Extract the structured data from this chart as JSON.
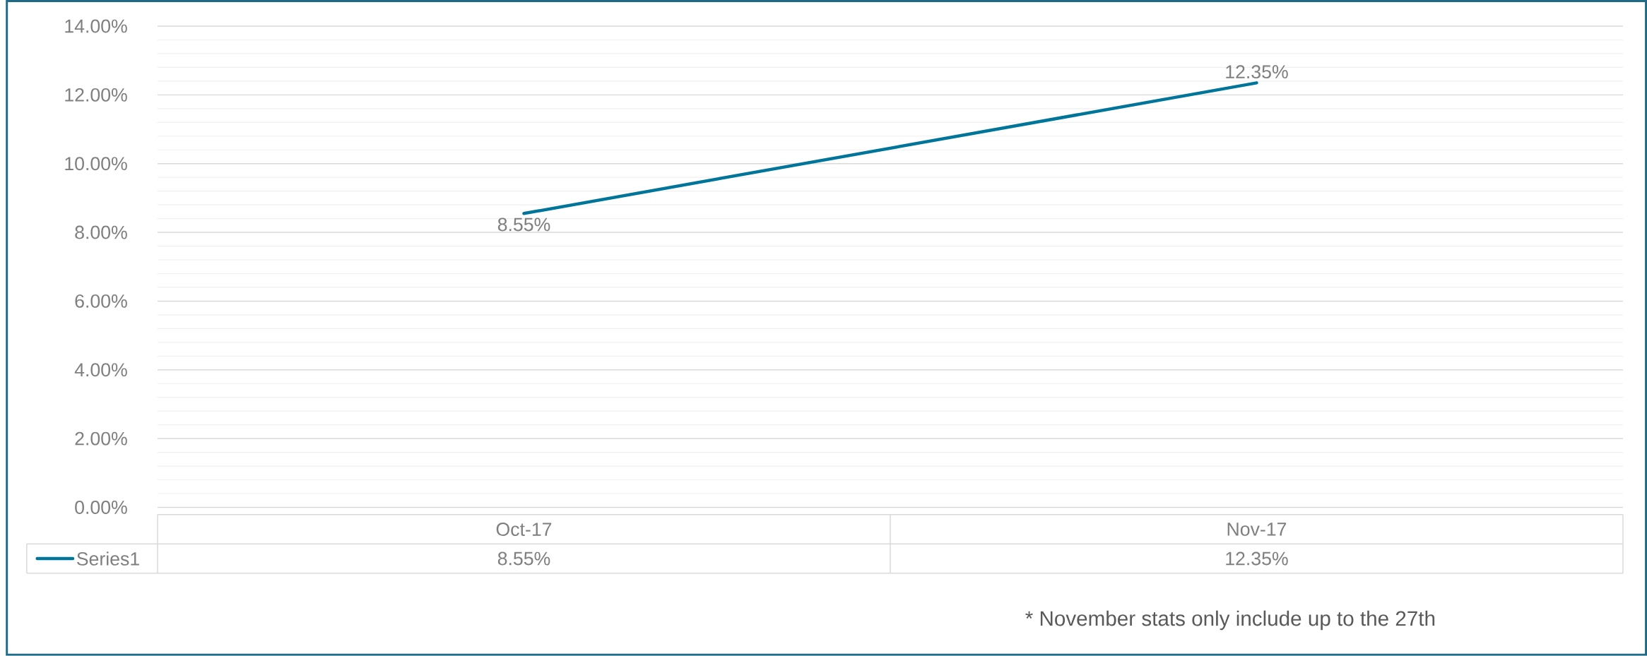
{
  "chart_data": {
    "type": "line",
    "categories": [
      "Oct-17",
      "Nov-17"
    ],
    "series": [
      {
        "name": "Series1",
        "color": "#00759a",
        "values": [
          8.55,
          12.35
        ],
        "value_labels": [
          "8.55%",
          "12.35%"
        ]
      }
    ],
    "ylim": [
      0,
      14
    ],
    "yticks": [
      {
        "value": 0,
        "label": "0.00%"
      },
      {
        "value": 2,
        "label": "2.00%"
      },
      {
        "value": 4,
        "label": "4.00%"
      },
      {
        "value": 6,
        "label": "6.00%"
      },
      {
        "value": 8,
        "label": "8.00%"
      },
      {
        "value": 10,
        "label": "10.00%"
      },
      {
        "value": 12,
        "label": "12.00%"
      },
      {
        "value": 14,
        "label": "14.00%"
      }
    ],
    "grid": "y",
    "legend": "bottom",
    "marker": "none",
    "line_style": "solid",
    "annotations": [
      "* November stats only include up to the 27th"
    ]
  }
}
